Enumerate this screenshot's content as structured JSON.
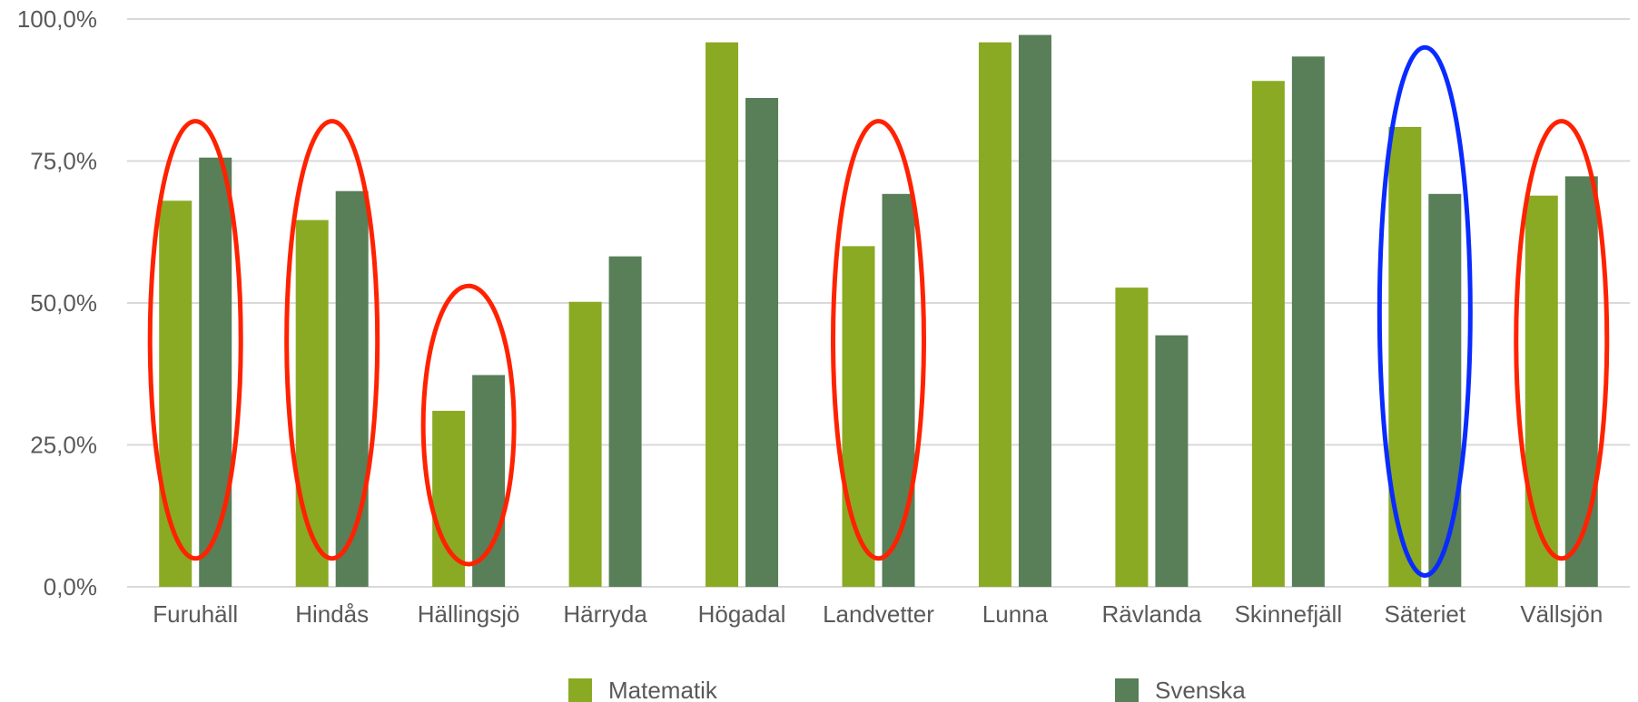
{
  "chart_data": {
    "type": "bar",
    "categories": [
      "Furuhäll",
      "Hindås",
      "Hällingsjö",
      "Härryda",
      "Högadal",
      "Landvetter",
      "Lunna",
      "Rävlanda",
      "Skinnefjäll",
      "Säteriet",
      "Vällsjön"
    ],
    "series": [
      {
        "name": "Matematik",
        "color": "#8aaa24",
        "values": [
          68.0,
          64.6,
          31.0,
          50.2,
          95.9,
          60.0,
          95.9,
          52.7,
          89.1,
          81.0,
          68.9
        ]
      },
      {
        "name": "Svenska",
        "color": "#587f58",
        "values": [
          75.6,
          69.7,
          37.3,
          58.2,
          86.1,
          69.2,
          97.2,
          44.3,
          93.4,
          69.2,
          72.3
        ]
      }
    ],
    "yticks": [
      "0,0%",
      "25,0%",
      "50,0%",
      "75,0%",
      "100,0%"
    ],
    "ylim": [
      0,
      100
    ],
    "grid": true,
    "legend_position": "bottom",
    "annotations": [
      {
        "shape": "ellipse",
        "color": "#ff2200",
        "category": "Furuhäll",
        "y_range": [
          5,
          82
        ]
      },
      {
        "shape": "ellipse",
        "color": "#ff2200",
        "category": "Hindås",
        "y_range": [
          5,
          82
        ]
      },
      {
        "shape": "ellipse",
        "color": "#ff2200",
        "category": "Hällingsjö",
        "y_range": [
          4,
          53
        ]
      },
      {
        "shape": "ellipse",
        "color": "#ff2200",
        "category": "Landvetter",
        "y_range": [
          5,
          82
        ]
      },
      {
        "shape": "ellipse",
        "color": "#0a2bff",
        "category": "Säteriet",
        "y_range": [
          2,
          95
        ]
      },
      {
        "shape": "ellipse",
        "color": "#ff2200",
        "category": "Vällsjön",
        "y_range": [
          5,
          82
        ]
      }
    ]
  }
}
